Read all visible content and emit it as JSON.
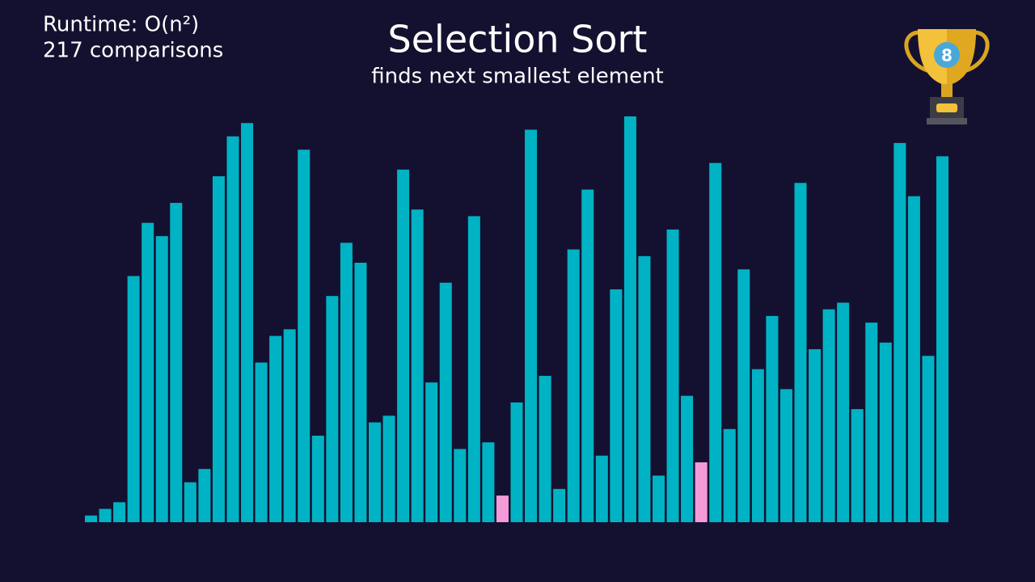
{
  "chart_data": {
    "type": "bar",
    "title": "Selection Sort",
    "subtitle": "finds next smallest element",
    "runtime": "Runtime: O(n²)",
    "comparisons": "217 comparisons",
    "badge": "8",
    "color": "#00b3c4",
    "values": [
      1,
      2,
      3,
      37,
      45,
      43,
      48,
      6,
      8,
      52,
      58,
      60,
      24,
      28,
      29,
      56,
      13,
      34,
      42,
      39,
      15,
      16,
      53,
      47,
      21,
      36,
      11,
      46,
      12,
      4,
      18,
      59,
      22,
      5,
      41,
      50,
      10,
      35,
      61,
      40,
      7,
      44,
      19,
      9,
      54,
      14,
      38,
      23,
      31,
      20,
      51,
      26,
      32,
      33,
      17,
      30,
      27,
      57,
      49,
      25,
      55
    ],
    "colors": [
      "#00b3c4",
      "#00b3c4",
      "#00b3c4",
      "#00b3c4",
      "#00b3c4",
      "#00b3c4",
      "#00b3c4",
      "#00b3c4",
      "#00b3c4",
      "#00b3c4",
      "#00b3c4",
      "#00b3c4",
      "#00b3c4",
      "#00b3c4",
      "#00b3c4",
      "#00b3c4",
      "#00b3c4",
      "#00b3c4",
      "#00b3c4",
      "#00b3c4",
      "#00b3c4",
      "#00b3c4",
      "#00b3c4",
      "#00b3c4",
      "#00b3c4",
      "#00b3c4",
      "#00b3c4",
      "#00b3c4",
      "#00b3c4",
      "#f49ad8",
      "#00b3c4",
      "#00b3c4",
      "#00b3c4",
      "#00b3c4",
      "#00b3c4",
      "#00b3c4",
      "#00b3c4",
      "#00b3c4",
      "#00b3c4",
      "#00b3c4",
      "#00b3c4",
      "#00b3c4",
      "#00b3c4",
      "#f49ad8",
      "#00b3c4",
      "#00b3c4",
      "#00b3c4",
      "#00b3c4",
      "#00b3c4",
      "#00b3c4",
      "#00b3c4",
      "#00b3c4",
      "#00b3c4",
      "#00b3c4",
      "#00b3c4",
      "#00b3c4",
      "#00b3c4",
      "#00b3c4",
      "#00b3c4",
      "#00b3c4",
      "#00b3c4"
    ]
  }
}
